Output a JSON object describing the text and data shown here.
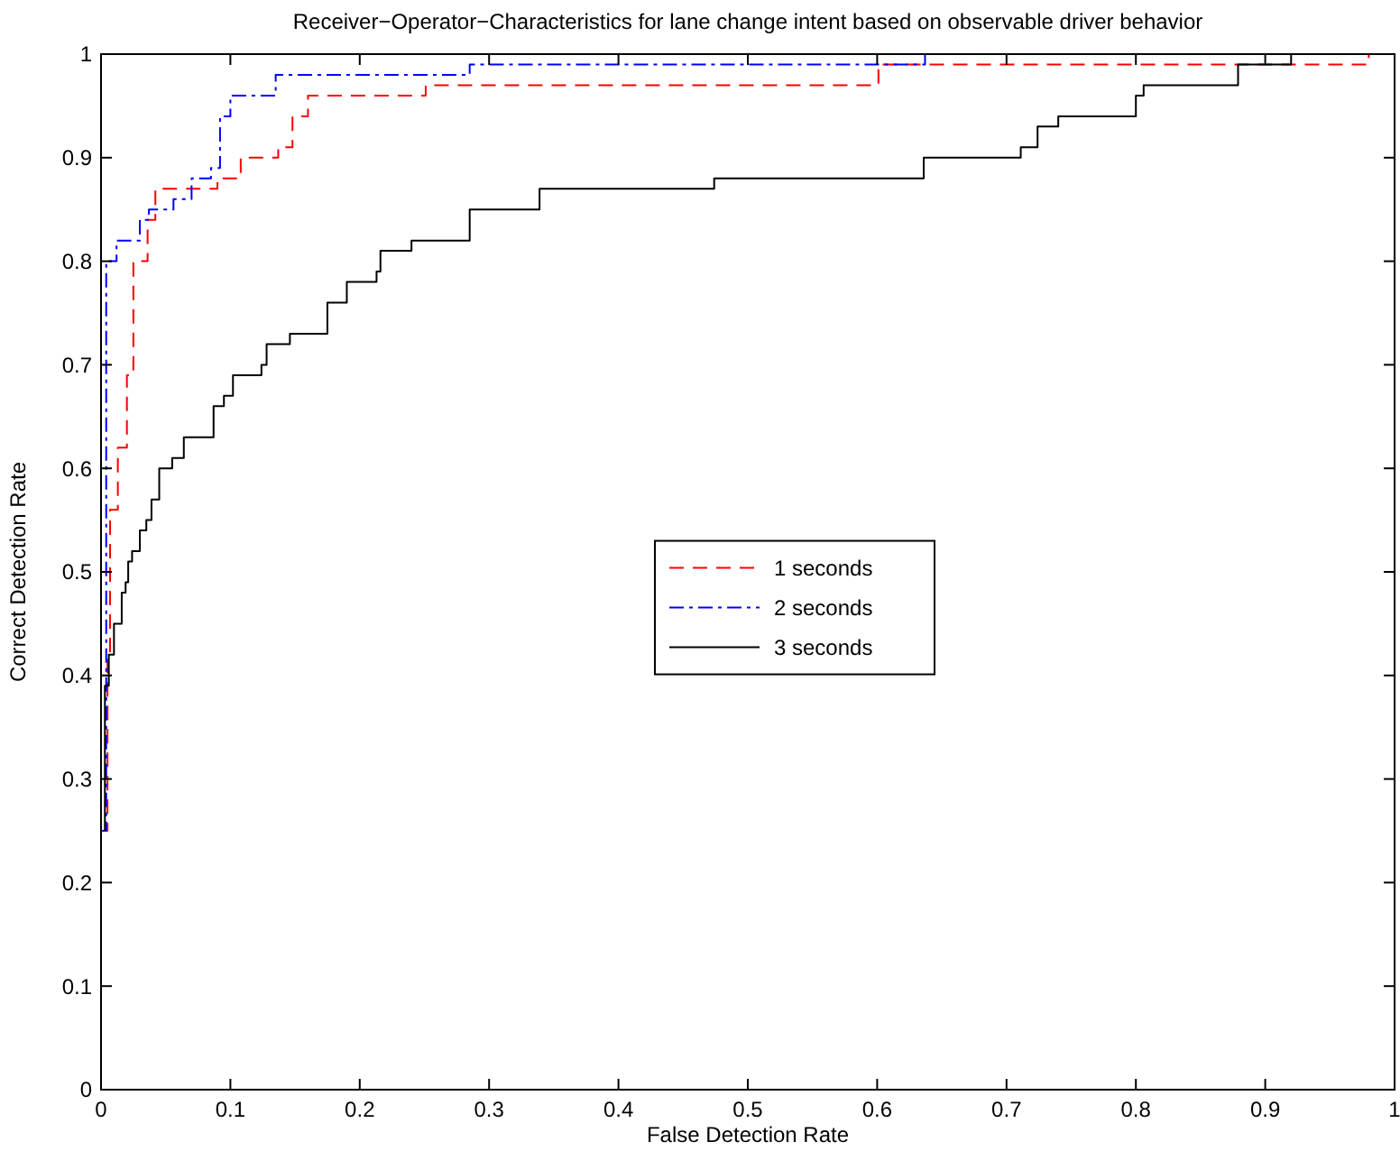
{
  "chart_data": {
    "type": "step",
    "title": "Receiver−Operator−Characteristics for lane change intent based on observable driver behavior",
    "xlabel": "False Detection Rate",
    "ylabel": "Correct Detection Rate",
    "xlim": [
      0,
      1
    ],
    "ylim": [
      0,
      1
    ],
    "xticks": [
      0,
      0.1,
      0.2,
      0.3,
      0.4,
      0.5,
      0.6,
      0.7,
      0.8,
      0.9,
      1
    ],
    "yticks": [
      0,
      0.1,
      0.2,
      0.3,
      0.4,
      0.5,
      0.6,
      0.7,
      0.8,
      0.9,
      1
    ],
    "grid": false,
    "legend": "right",
    "series": [
      {
        "name": "1 seconds",
        "color": "#ff0000",
        "line_style": "dashed",
        "x": [
          0,
          0.005,
          0.007,
          0.013,
          0.02,
          0.025,
          0.036,
          0.042,
          0.09,
          0.108,
          0.137,
          0.148,
          0.16,
          0.251,
          0.601,
          0.98
        ],
        "values": [
          0.25,
          0.42,
          0.56,
          0.62,
          0.69,
          0.8,
          0.84,
          0.87,
          0.88,
          0.9,
          0.91,
          0.94,
          0.96,
          0.97,
          0.99,
          1
        ]
      },
      {
        "name": "2 seconds",
        "color": "#0000ff",
        "line_style": "dashdot",
        "x": [
          0,
          0.004,
          0.012,
          0.03,
          0.037,
          0.056,
          0.07,
          0.085,
          0.092,
          0.1,
          0.135,
          0.285,
          0.637
        ],
        "values": [
          0.25,
          0.8,
          0.82,
          0.84,
          0.85,
          0.86,
          0.88,
          0.89,
          0.94,
          0.96,
          0.98,
          0.99,
          1
        ]
      },
      {
        "name": "3 seconds",
        "color": "#000000",
        "line_style": "solid",
        "x": [
          0.003,
          0.003,
          0.006,
          0.01,
          0.016,
          0.019,
          0.021,
          0.024,
          0.03,
          0.035,
          0.039,
          0.045,
          0.055,
          0.064,
          0.087,
          0.095,
          0.102,
          0.124,
          0.128,
          0.146,
          0.175,
          0.19,
          0.213,
          0.216,
          0.24,
          0.285,
          0.339,
          0.474,
          0.636,
          0.711,
          0.724,
          0.74,
          0.8,
          0.806,
          0.879,
          0.92,
          1
        ],
        "values": [
          0.25,
          0.39,
          0.42,
          0.45,
          0.48,
          0.49,
          0.51,
          0.52,
          0.54,
          0.55,
          0.57,
          0.6,
          0.61,
          0.63,
          0.66,
          0.67,
          0.69,
          0.7,
          0.72,
          0.73,
          0.76,
          0.78,
          0.79,
          0.81,
          0.82,
          0.85,
          0.87,
          0.88,
          0.9,
          0.91,
          0.93,
          0.94,
          0.96,
          0.97,
          0.99,
          1,
          1
        ]
      }
    ]
  }
}
